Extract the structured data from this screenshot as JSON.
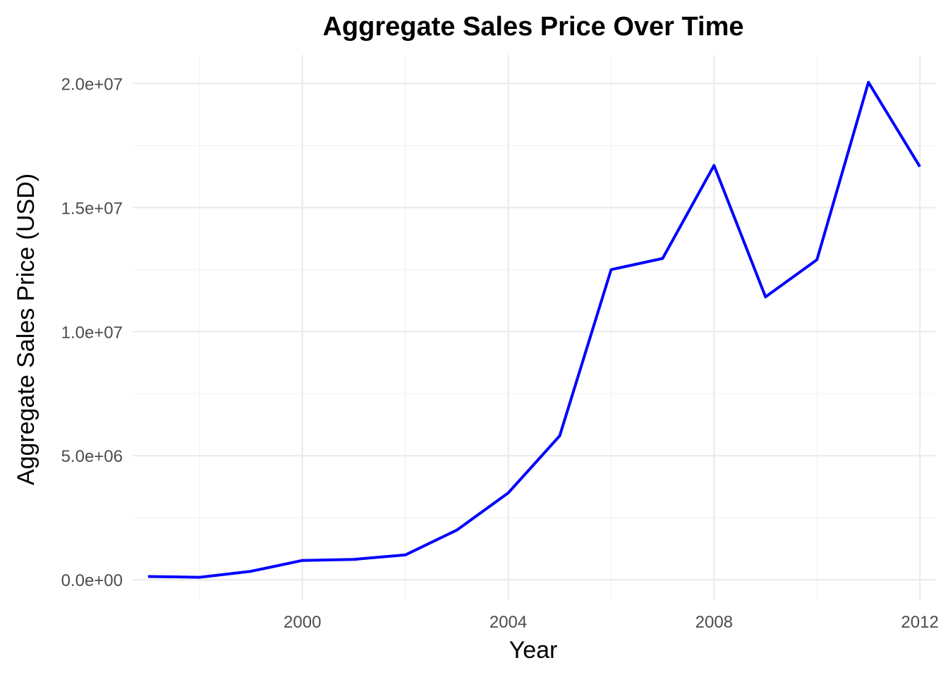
{
  "chart_data": {
    "type": "line",
    "title": "Aggregate Sales Price Over Time",
    "xlabel": "Year",
    "ylabel": "Aggregate Sales Price (USD)",
    "x": [
      1997,
      1998,
      1999,
      2000,
      2001,
      2002,
      2003,
      2004,
      2005,
      2006,
      2007,
      2008,
      2009,
      2010,
      2011,
      2012
    ],
    "series": [
      {
        "values": [
          130000,
          100000,
          340000,
          780000,
          820000,
          1000000,
          2000000,
          3500000,
          5800000,
          12500000,
          12950000,
          16700000,
          11400000,
          12900000,
          20050000,
          16650000
        ],
        "color": "#0000ff"
      }
    ],
    "xlim": [
      1996.7,
      2012.3
    ],
    "ylim": [
      -850000,
      21150000
    ],
    "x_ticks": [
      2000,
      2004,
      2008,
      2012
    ],
    "x_tick_labels": [
      "2000",
      "2004",
      "2008",
      "2012"
    ],
    "y_ticks": [
      0,
      5000000,
      10000000,
      15000000,
      20000000
    ],
    "y_tick_labels": [
      "0.0e+00",
      "5.0e+06",
      "1.0e+07",
      "1.5e+07",
      "2.0e+07"
    ],
    "grid": true,
    "legend": "none"
  }
}
